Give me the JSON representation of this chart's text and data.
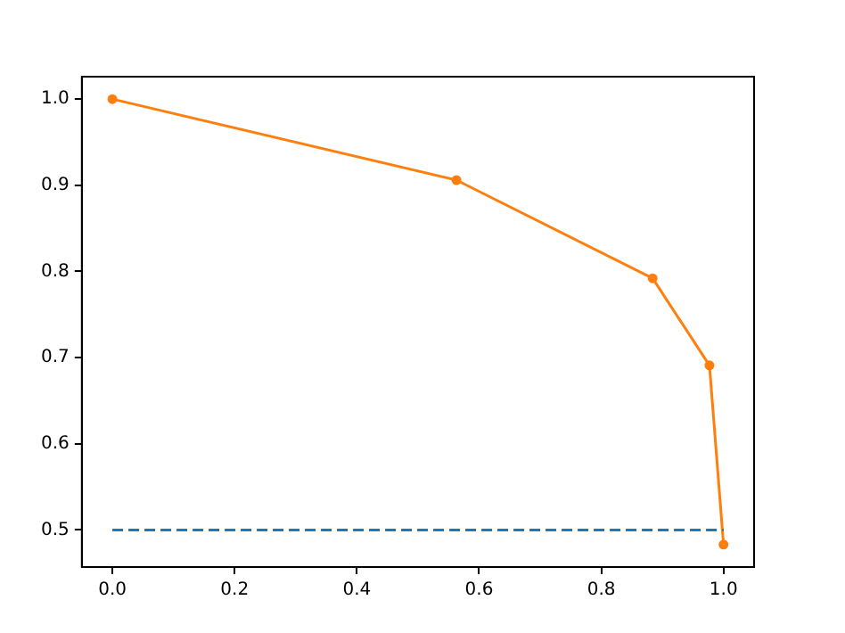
{
  "chart_data": {
    "type": "line",
    "series": [
      {
        "color": "#1f77b4",
        "x": [
          0,
          1
        ],
        "values": [
          0.5,
          0.5
        ],
        "line_style": "dashed",
        "marker": "none"
      },
      {
        "color": "#ff7f0e",
        "x": [
          0,
          0.563,
          0.884,
          0.977,
          1.0
        ],
        "values": [
          1.0,
          0.906,
          0.792,
          0.691,
          0.483
        ],
        "marker": "circle"
      }
    ],
    "xlim": [
      -0.05,
      1.05
    ],
    "xticks": [
      {
        "value": 0,
        "label": "0.0"
      },
      0.2,
      0.4,
      0.6,
      0.8,
      {
        "value": 1,
        "label": "1.0"
      }
    ],
    "ylim": [
      0.457,
      1.026
    ],
    "yticks": [
      0.5,
      0.6,
      0.7,
      0.8,
      0.9,
      {
        "value": 1,
        "label": "1.0"
      }
    ],
    "grid": false,
    "legend": false
  }
}
